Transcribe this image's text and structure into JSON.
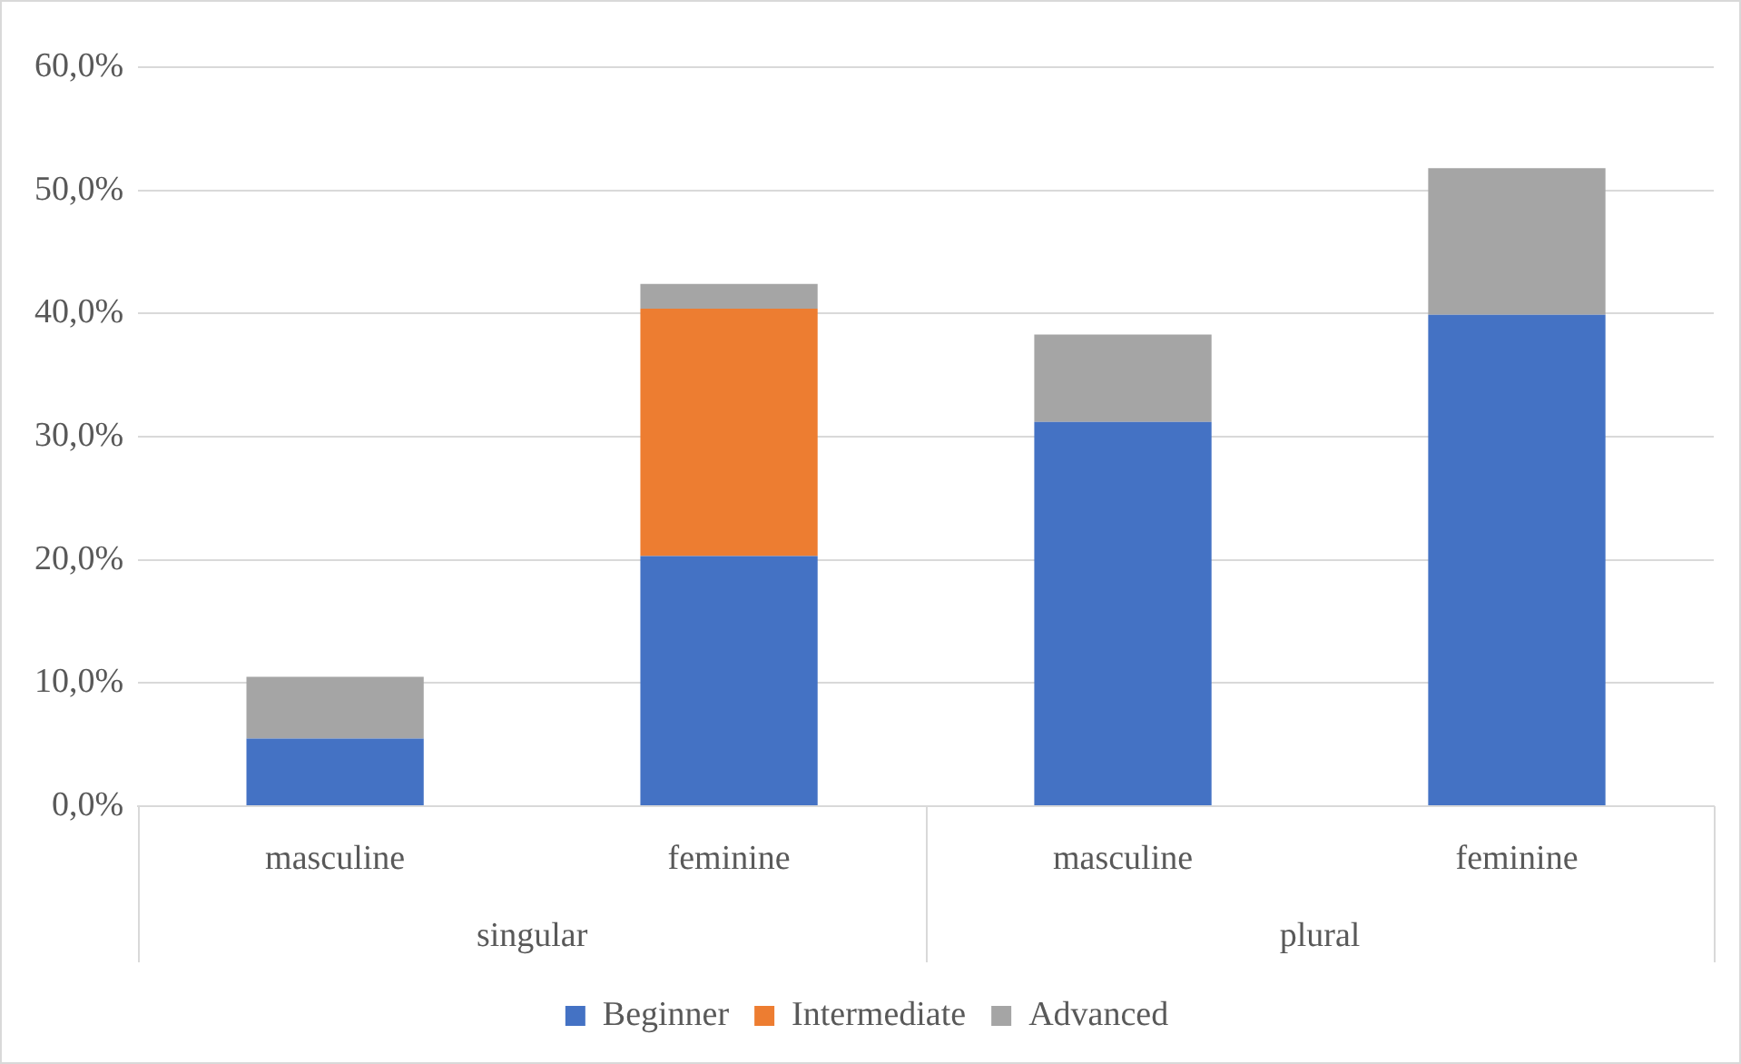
{
  "chart_data": {
    "type": "bar",
    "stacked": true,
    "categories": [
      "masculine",
      "feminine",
      "masculine",
      "feminine"
    ],
    "annotations": [
      "singular",
      "plural"
    ],
    "series": [
      {
        "name": "Beginner",
        "color": "#4472c4",
        "values": [
          5.5,
          20.3,
          31.2,
          39.9
        ]
      },
      {
        "name": "Intermediate",
        "color": "#ed7d31",
        "values": [
          0,
          20.1,
          0,
          0
        ]
      },
      {
        "name": "Advanced",
        "color": "#a5a5a5",
        "values": [
          5.0,
          2.0,
          7.1,
          11.9
        ]
      }
    ],
    "ylim": [
      0,
      60
    ],
    "yticks": [
      {
        "value": 0,
        "label": "0,0%"
      },
      {
        "value": 10,
        "label": "10,0%"
      },
      {
        "value": 20,
        "label": "20,0%"
      },
      {
        "value": 30,
        "label": "30,0%"
      },
      {
        "value": 40,
        "label": "40,0%"
      },
      {
        "value": 50,
        "label": "50,0%"
      },
      {
        "value": 60,
        "label": "60,0%"
      }
    ],
    "grid": "y",
    "legend": "bottom"
  }
}
